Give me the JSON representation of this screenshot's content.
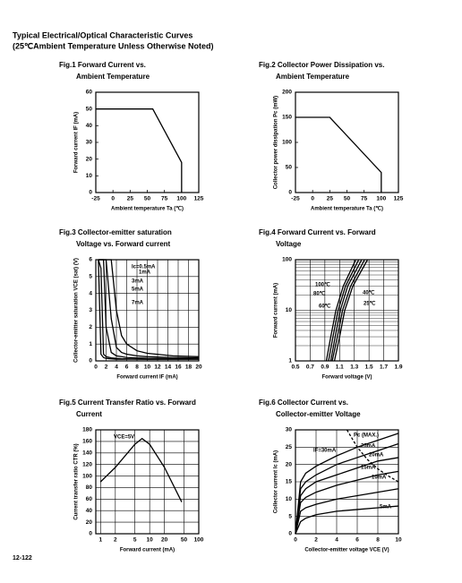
{
  "header": {
    "title": "Typical Electrical/Optical Characteristic Curves",
    "subtitle": "(25℃Ambient Temperature Unless Otherwise Noted)"
  },
  "page_number": "12-122",
  "chart_data": [
    {
      "type": "line",
      "title": [
        "Fig.1 Forward Current vs.",
        "Ambient Temperature"
      ],
      "xlabel": "Ambient temperature Ta (℃)",
      "ylabel": "Forward current IF (mA)",
      "xlim": [
        -25,
        125
      ],
      "xticks": [
        -25,
        0,
        25,
        50,
        75,
        100,
        125
      ],
      "ylim": [
        0,
        60
      ],
      "yticks": [
        0,
        10,
        20,
        30,
        40,
        50,
        60
      ],
      "grid": false,
      "color": "#000000",
      "series": [
        {
          "x": [
            -25,
            58,
            100,
            100
          ],
          "values": [
            50,
            50,
            18,
            0
          ]
        }
      ]
    },
    {
      "type": "line",
      "title": [
        "Fig.2 Collector Power Dissipation vs.",
        "Ambient Temperature"
      ],
      "xlabel": "Ambient temperature Ta (℃)",
      "ylabel": "Collector power dissipation Pc (mW)",
      "xlim": [
        -25,
        125
      ],
      "xticks": [
        -25,
        0,
        25,
        50,
        75,
        100,
        125
      ],
      "ylim": [
        0,
        200
      ],
      "yticks": [
        0,
        50,
        100,
        150,
        200
      ],
      "grid": false,
      "color": "#000000",
      "series": [
        {
          "x": [
            -25,
            25,
            100,
            100
          ],
          "values": [
            150,
            150,
            40,
            0
          ]
        }
      ]
    },
    {
      "type": "line",
      "title": [
        "Fig.3 Collector-emitter saturation",
        "Voltage vs. Forward current"
      ],
      "xlabel": "Forward current IF (mA)",
      "ylabel": "Collector-emitter saturation VCE (sat) (V)",
      "xlim": [
        0,
        20
      ],
      "xticks": [
        0,
        2,
        4,
        6,
        8,
        10,
        12,
        14,
        16,
        18,
        20
      ],
      "ylim": [
        0,
        6
      ],
      "yticks": [
        0,
        1,
        2,
        3,
        4,
        5,
        6
      ],
      "grid": true,
      "color": "#000000",
      "series": [
        {
          "name": "Ic=0.5mA",
          "x": [
            0.5,
            1,
            1.5,
            2,
            3,
            4,
            5,
            6,
            8,
            10,
            15,
            20
          ],
          "values": [
            6,
            0.4,
            0.2,
            0.15,
            0.12,
            0.1,
            0.1,
            0.1,
            0.1,
            0.1,
            0.1,
            0.1
          ]
        },
        {
          "name": "1mA",
          "x": [
            0.5,
            1,
            1.5,
            2,
            3,
            4,
            5,
            6,
            8,
            10,
            15,
            20
          ],
          "values": [
            6,
            5.5,
            0.4,
            0.25,
            0.18,
            0.15,
            0.13,
            0.12,
            0.11,
            0.1,
            0.1,
            0.1
          ]
        },
        {
          "name": "3mA",
          "x": [
            0.5,
            1,
            1.5,
            2,
            3,
            4,
            5,
            6,
            8,
            10,
            15,
            20
          ],
          "values": [
            6,
            6,
            6,
            2,
            0.5,
            0.3,
            0.25,
            0.2,
            0.18,
            0.15,
            0.13,
            0.12
          ]
        },
        {
          "name": "5mA",
          "x": [
            0.5,
            1,
            1.5,
            2,
            3,
            4,
            5,
            6,
            8,
            10,
            15,
            20
          ],
          "values": [
            6,
            6,
            6,
            6,
            2.5,
            0.8,
            0.5,
            0.4,
            0.3,
            0.25,
            0.2,
            0.18
          ]
        },
        {
          "name": "7mA",
          "x": [
            0.5,
            1,
            1.5,
            2,
            3,
            4,
            5,
            6,
            8,
            10,
            15,
            20
          ],
          "values": [
            6,
            6,
            6,
            6,
            6,
            3,
            1.5,
            1,
            0.6,
            0.45,
            0.3,
            0.25
          ]
        }
      ]
    },
    {
      "type": "line",
      "title": [
        "Fig.4 Forward Current vs. Forward",
        "Voltage"
      ],
      "xlabel": "Forward voltage (V)",
      "ylabel": "Forward current (mA)",
      "xlim": [
        0.5,
        1.9
      ],
      "xticks": [
        0.5,
        0.7,
        0.9,
        1.1,
        1.3,
        1.5,
        1.7,
        1.9
      ],
      "ylim": [
        1,
        100
      ],
      "yticks": [
        1,
        10,
        100
      ],
      "ylog": true,
      "grid": true,
      "color": "#000000",
      "series": [
        {
          "name": "100℃",
          "x": [
            0.92,
            0.98,
            1.05,
            1.15,
            1.32
          ],
          "values": [
            1,
            3,
            10,
            30,
            100
          ]
        },
        {
          "name": "80℃",
          "x": [
            0.95,
            1.01,
            1.08,
            1.18,
            1.36
          ],
          "values": [
            1,
            3,
            10,
            30,
            100
          ]
        },
        {
          "name": "60℃",
          "x": [
            0.98,
            1.04,
            1.11,
            1.21,
            1.4
          ],
          "values": [
            1,
            3,
            10,
            30,
            100
          ]
        },
        {
          "name": "40℃",
          "x": [
            1.0,
            1.07,
            1.14,
            1.25,
            1.44
          ],
          "values": [
            1,
            3,
            10,
            30,
            100
          ]
        },
        {
          "name": "25℃",
          "x": [
            1.03,
            1.1,
            1.17,
            1.28,
            1.48
          ],
          "values": [
            1,
            3,
            10,
            30,
            100
          ]
        }
      ]
    },
    {
      "type": "line",
      "title": [
        "Fig.5 Current Transfer Ratio vs. Forward",
        "Current"
      ],
      "xlabel": "Forward current (mA)",
      "ylabel": "Current transfer ratio CTR (%)",
      "annotation": "VCE=5V",
      "xlim": [
        0.8,
        100
      ],
      "xticks": [
        1,
        2,
        5,
        10,
        20,
        50,
        100
      ],
      "xlog": true,
      "ylim": [
        0,
        180
      ],
      "yticks": [
        0,
        20,
        40,
        60,
        80,
        100,
        120,
        140,
        160,
        180
      ],
      "grid": true,
      "color": "#000000",
      "series": [
        {
          "x": [
            1,
            2,
            5,
            7,
            10,
            20,
            45
          ],
          "values": [
            90,
            115,
            155,
            165,
            155,
            115,
            55
          ]
        }
      ]
    },
    {
      "type": "line",
      "title": [
        "Fig.6 Collector Current vs.",
        "Collector-emitter Voltage"
      ],
      "xlabel": "Collector-emitter voltage VCE (V)",
      "ylabel": "Collector current Ic (mA)",
      "xlim": [
        0,
        10
      ],
      "xticks": [
        0,
        2,
        4,
        6,
        8,
        10
      ],
      "ylim": [
        0,
        30
      ],
      "yticks": [
        0,
        5,
        10,
        15,
        20,
        25,
        30
      ],
      "grid": true,
      "color": "#000000",
      "series": [
        {
          "name": "Pc (MAX.)",
          "dashed": true,
          "x": [
            5,
            6,
            7,
            8,
            9,
            10
          ],
          "values": [
            30,
            25,
            21.4,
            18.75,
            16.7,
            15
          ]
        },
        {
          "name": "IF=30mA",
          "x": [
            0,
            0.5,
            1,
            2,
            4,
            6,
            8,
            10
          ],
          "values": [
            0,
            15,
            17.5,
            19.5,
            22.5,
            25,
            27,
            29
          ]
        },
        {
          "name": "25mA",
          "x": [
            0,
            0.5,
            1,
            2,
            4,
            6,
            8,
            10
          ],
          "values": [
            0,
            13,
            15,
            17,
            20,
            22,
            24,
            26
          ]
        },
        {
          "name": "20mA",
          "x": [
            0,
            0.5,
            1,
            2,
            4,
            6,
            8,
            10
          ],
          "values": [
            0,
            11,
            13,
            15,
            17,
            19,
            21,
            22
          ]
        },
        {
          "name": "15mA",
          "x": [
            0,
            0.5,
            1,
            2,
            4,
            6,
            8,
            10
          ],
          "values": [
            0,
            9,
            10.5,
            12,
            14,
            15.5,
            17,
            18
          ]
        },
        {
          "name": "10mA",
          "x": [
            0,
            0.5,
            1,
            2,
            4,
            6,
            8,
            10
          ],
          "values": [
            0,
            6.5,
            7.5,
            8.5,
            10,
            11,
            12,
            13
          ]
        },
        {
          "name": "5mA",
          "x": [
            0,
            0.5,
            1,
            2,
            4,
            6,
            8,
            10
          ],
          "values": [
            0,
            3.5,
            4.5,
            5.5,
            6.5,
            7,
            7.5,
            8
          ]
        }
      ]
    }
  ]
}
